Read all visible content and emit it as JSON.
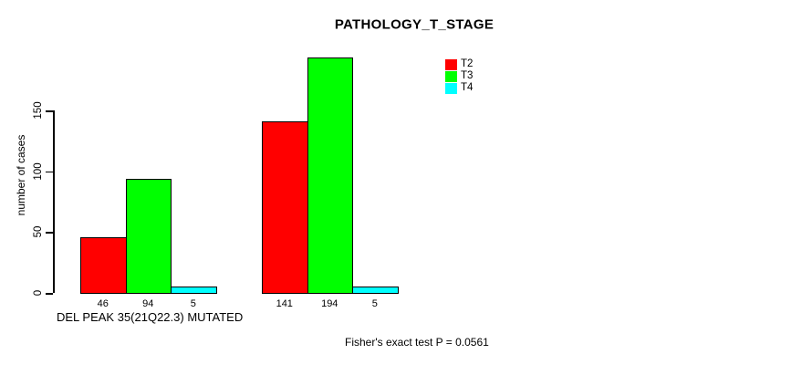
{
  "chart_data": {
    "type": "bar",
    "title": "PATHOLOGY_T_STAGE",
    "ylabel": "number of cases",
    "xlabel": "DEL PEAK 35(21Q22.3) MUTATED",
    "yticks": [
      0,
      50,
      100,
      150
    ],
    "ylim": [
      0,
      150
    ],
    "grid": false,
    "legend_position": "top-right",
    "categories": [
      "DEL PEAK 35(21Q22.3) MUTATED",
      ""
    ],
    "series": [
      {
        "name": "T2",
        "color": "#ff0000",
        "values": [
          46,
          141
        ]
      },
      {
        "name": "T3",
        "color": "#00ff00",
        "values": [
          94,
          194
        ]
      },
      {
        "name": "T4",
        "color": "#00ffff",
        "values": [
          5,
          5
        ]
      }
    ],
    "bar_value_labels": [
      [
        46,
        94,
        5
      ],
      [
        141,
        194,
        5
      ]
    ],
    "annotation": "Fisher's exact test P = 0.0561"
  }
}
